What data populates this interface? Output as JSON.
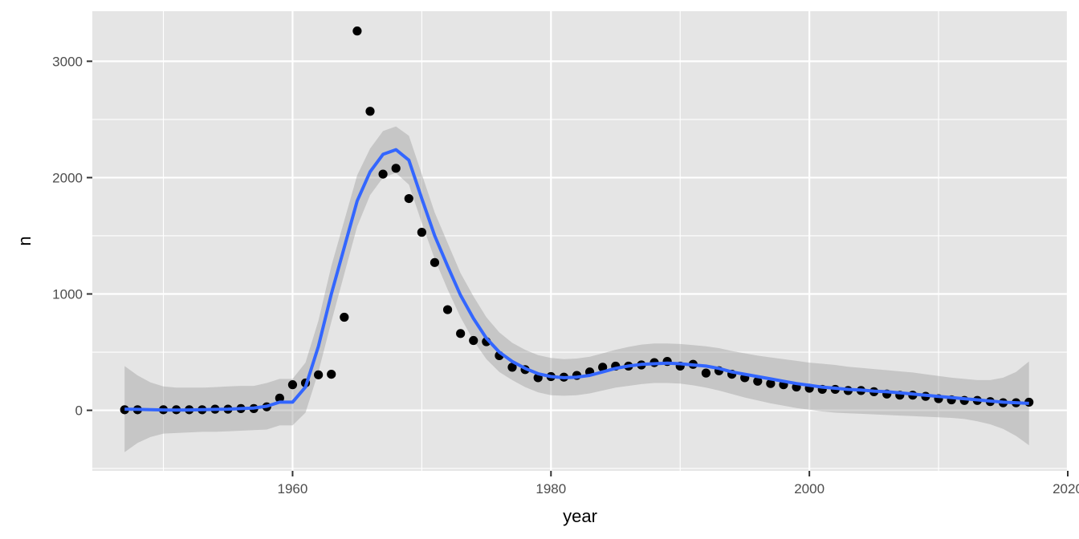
{
  "chart_data": {
    "type": "scatter",
    "xlabel": "year",
    "ylabel": "n",
    "xlim": [
      1944.5,
      2020
    ],
    "ylim": [
      -520,
      3430
    ],
    "x_ticks": [
      1960,
      1980,
      2000,
      2020
    ],
    "x_tick_labels": [
      "1960",
      "1980",
      "2000",
      "2020"
    ],
    "y_ticks": [
      0,
      1000,
      2000,
      3000
    ],
    "y_tick_labels": [
      "0",
      "1000",
      "2000",
      "3000"
    ],
    "grid": true,
    "legend": "none",
    "colors": {
      "panel": "#e5e5e5",
      "grid": "#ffffff",
      "points": "#000000",
      "smooth_line": "#3366ff",
      "ribbon": "#999999"
    },
    "points": {
      "x": [
        1947,
        1948,
        1950,
        1951,
        1952,
        1953,
        1954,
        1955,
        1956,
        1957,
        1958,
        1959,
        1960,
        1961,
        1962,
        1963,
        1964,
        1965,
        1966,
        1967,
        1968,
        1969,
        1970,
        1971,
        1972,
        1973,
        1974,
        1975,
        1976,
        1977,
        1978,
        1979,
        1980,
        1981,
        1982,
        1983,
        1984,
        1985,
        1986,
        1987,
        1988,
        1989,
        1990,
        1991,
        1992,
        1993,
        1994,
        1995,
        1996,
        1997,
        1998,
        1999,
        2000,
        2001,
        2002,
        2003,
        2004,
        2005,
        2006,
        2007,
        2008,
        2009,
        2010,
        2011,
        2012,
        2013,
        2014,
        2015,
        2016,
        2017
      ],
      "y": [
        5,
        5,
        5,
        5,
        5,
        5,
        10,
        10,
        15,
        15,
        30,
        105,
        220,
        235,
        305,
        310,
        800,
        3260,
        2570,
        2030,
        2080,
        1820,
        1530,
        1270,
        865,
        660,
        600,
        590,
        470,
        370,
        350,
        280,
        290,
        285,
        300,
        330,
        370,
        380,
        380,
        390,
        410,
        420,
        380,
        395,
        320,
        340,
        310,
        280,
        250,
        230,
        220,
        200,
        190,
        180,
        180,
        170,
        170,
        160,
        140,
        130,
        130,
        120,
        100,
        90,
        85,
        85,
        75,
        65,
        65,
        70
      ]
    },
    "smooth": {
      "x": [
        1947,
        1948,
        1949,
        1950,
        1951,
        1952,
        1953,
        1954,
        1955,
        1956,
        1957,
        1958,
        1959,
        1960,
        1961,
        1962,
        1963,
        1964,
        1965,
        1966,
        1967,
        1968,
        1969,
        1970,
        1971,
        1972,
        1973,
        1974,
        1975,
        1976,
        1977,
        1978,
        1979,
        1980,
        1981,
        1982,
        1983,
        1984,
        1985,
        1986,
        1987,
        1988,
        1989,
        1990,
        1991,
        1992,
        1993,
        1994,
        1995,
        1996,
        1997,
        1998,
        1999,
        2000,
        2001,
        2002,
        2003,
        2004,
        2005,
        2006,
        2007,
        2008,
        2009,
        2010,
        2011,
        2012,
        2013,
        2014,
        2015,
        2016,
        2017
      ],
      "y": [
        10,
        8,
        5,
        3,
        2,
        3,
        5,
        8,
        10,
        15,
        20,
        35,
        70,
        70,
        200,
        550,
        1000,
        1400,
        1800,
        2050,
        2200,
        2240,
        2150,
        1820,
        1500,
        1240,
        990,
        790,
        620,
        500,
        420,
        360,
        315,
        290,
        280,
        285,
        300,
        330,
        360,
        380,
        395,
        400,
        405,
        400,
        390,
        380,
        360,
        330,
        310,
        290,
        270,
        250,
        230,
        215,
        200,
        190,
        180,
        175,
        165,
        160,
        150,
        140,
        130,
        120,
        110,
        100,
        90,
        80,
        70,
        65,
        60
      ],
      "lower": [
        -360,
        -280,
        -230,
        -200,
        -195,
        -190,
        -185,
        -185,
        -180,
        -175,
        -170,
        -165,
        -130,
        -130,
        -20,
        330,
        760,
        1170,
        1580,
        1850,
        2000,
        2040,
        1940,
        1610,
        1300,
        1040,
        800,
        600,
        440,
        330,
        260,
        200,
        155,
        130,
        125,
        130,
        145,
        170,
        195,
        210,
        225,
        235,
        235,
        230,
        215,
        195,
        170,
        140,
        110,
        85,
        60,
        40,
        20,
        5,
        -10,
        -20,
        -25,
        -30,
        -35,
        -40,
        -45,
        -50,
        -55,
        -60,
        -65,
        -75,
        -95,
        -120,
        -160,
        -220,
        -300
      ],
      "upper": [
        380,
        300,
        240,
        205,
        195,
        195,
        195,
        200,
        205,
        210,
        210,
        235,
        270,
        270,
        410,
        770,
        1240,
        1630,
        2020,
        2250,
        2400,
        2440,
        2360,
        2030,
        1700,
        1440,
        1180,
        980,
        800,
        670,
        580,
        520,
        475,
        450,
        440,
        445,
        460,
        490,
        520,
        545,
        565,
        575,
        575,
        570,
        560,
        550,
        535,
        510,
        490,
        470,
        455,
        440,
        425,
        410,
        400,
        390,
        375,
        365,
        355,
        345,
        335,
        325,
        310,
        295,
        280,
        270,
        260,
        260,
        280,
        330,
        420
      ]
    }
  }
}
